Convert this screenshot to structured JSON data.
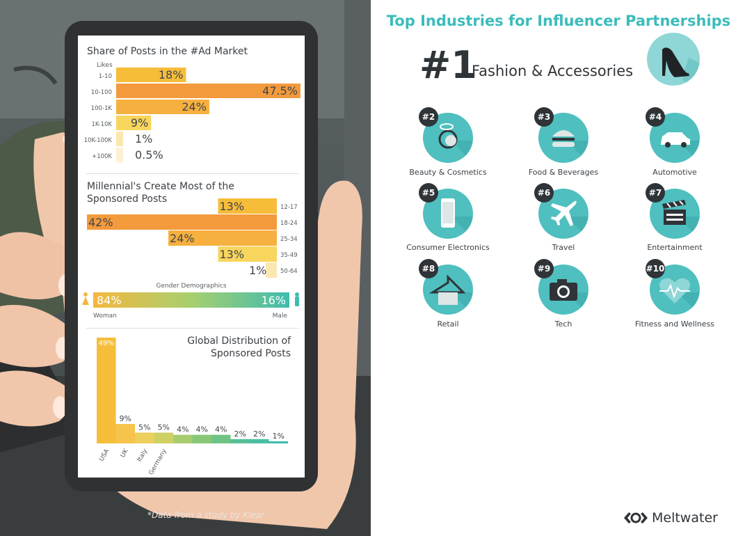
{
  "left": {
    "footnote": "*Data from a study by Klear"
  },
  "chart_data": [
    {
      "type": "bar",
      "title": "Share of Posts in the #Ad Market",
      "ylabel": "Likes",
      "categories": [
        "1-10",
        "10-100",
        "100-1K",
        "1K-10K",
        "10K-100K",
        "+100K"
      ],
      "values": [
        18,
        47.5,
        24,
        9,
        1,
        0.5
      ],
      "labels": [
        "18%",
        "47.5%",
        "24%",
        "9%",
        "1%",
        "0.5%"
      ],
      "orientation": "horizontal",
      "colors": [
        "#f6bd3a",
        "#f39a3c",
        "#f6b03f",
        "#f8d55d",
        "#fbe8b0",
        "#fdf1d2"
      ]
    },
    {
      "type": "bar",
      "title": "Millennial's Create Most of the Sponsored Posts",
      "categories": [
        "12-17",
        "18-24",
        "25-34",
        "35-49",
        "50-64"
      ],
      "values": [
        13,
        42,
        24,
        13,
        1
      ],
      "labels": [
        "13%",
        "42%",
        "24%",
        "13%",
        "1%"
      ],
      "orientation": "horizontal",
      "colors": [
        "#f6bd3a",
        "#f39a3c",
        "#f6b03f",
        "#f8d55d",
        "#fbe8b0"
      ]
    },
    {
      "type": "bar",
      "title": "Gender Demographics",
      "categories": [
        "Woman",
        "Male"
      ],
      "values": [
        84,
        16
      ],
      "labels": [
        "84%",
        "16%"
      ],
      "orientation": "horizontal-stacked"
    },
    {
      "type": "bar",
      "title": "Global Distribution of Sponsored Posts",
      "categories": [
        "USA",
        "UK",
        "Italy",
        "Germany",
        "",
        "",
        "",
        "",
        "",
        ""
      ],
      "values": [
        49,
        9,
        5,
        5,
        4,
        4,
        4,
        2,
        2,
        1
      ],
      "labels": [
        "49%",
        "9%",
        "5%",
        "5%",
        "4%",
        "4%",
        "4%",
        "2%",
        "2%",
        "1%"
      ],
      "orientation": "vertical"
    }
  ],
  "right": {
    "title": "Top Industries for Influencer Partnerships",
    "top": {
      "rank": "#1",
      "name": "Fashion & Accessories",
      "icon": "high-heel-icon"
    },
    "industries": [
      {
        "rank": "#2",
        "name": "Beauty & Cosmetics",
        "icon": "compact-mirror-icon"
      },
      {
        "rank": "#3",
        "name": "Food & Beverages",
        "icon": "burger-icon"
      },
      {
        "rank": "#4",
        "name": "Automotive",
        "icon": "car-icon"
      },
      {
        "rank": "#5",
        "name": "Consumer Electronics",
        "icon": "smartphone-icon"
      },
      {
        "rank": "#6",
        "name": "Travel",
        "icon": "airplane-icon"
      },
      {
        "rank": "#7",
        "name": "Entertainment",
        "icon": "clapperboard-icon"
      },
      {
        "rank": "#8",
        "name": "Retail",
        "icon": "hanger-icon"
      },
      {
        "rank": "#9",
        "name": "Tech",
        "icon": "camera-icon"
      },
      {
        "rank": "#10",
        "name": "Fitness and Wellness",
        "icon": "heartbeat-icon"
      }
    ],
    "brand": "Meltwater",
    "accent": "#3bbcbb"
  }
}
